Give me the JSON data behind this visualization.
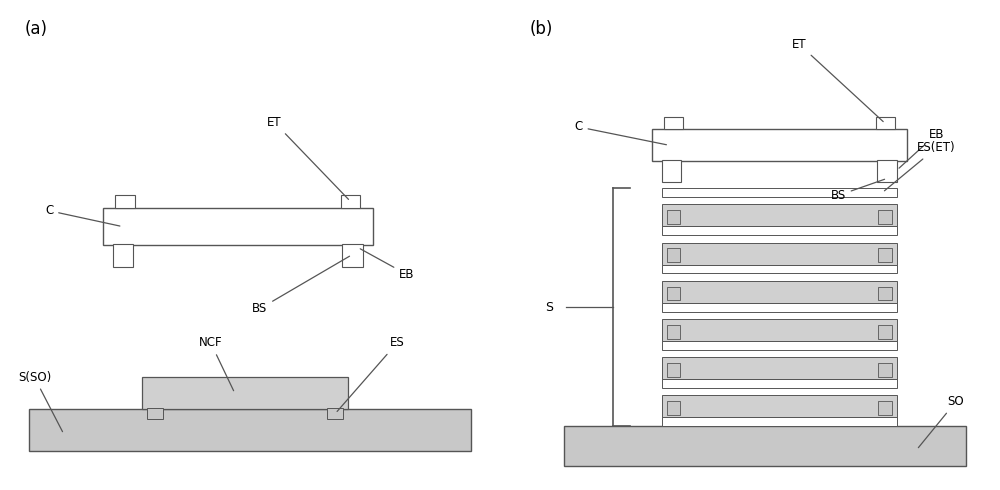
{
  "bg_color": "#ffffff",
  "line_color": "#555555",
  "fill_light": "#c8c8c8",
  "fill_ncf": "#d0d0d0",
  "fill_white": "#ffffff",
  "panel_a_label": "(a)",
  "panel_b_label": "(b)",
  "label_ET_a": "ET",
  "label_C_a": "C",
  "label_BS_a": "BS",
  "label_EB_a": "EB",
  "label_ES_a": "ES",
  "label_NCF_a": "NCF",
  "label_SSO_a": "S(SO)",
  "label_ET_b": "ET",
  "label_C_b": "C",
  "label_BS_b": "BS",
  "label_EB_b": "EB",
  "label_ESET_b": "ES(ET)",
  "label_S_b": "S",
  "label_SO_b": "SO"
}
